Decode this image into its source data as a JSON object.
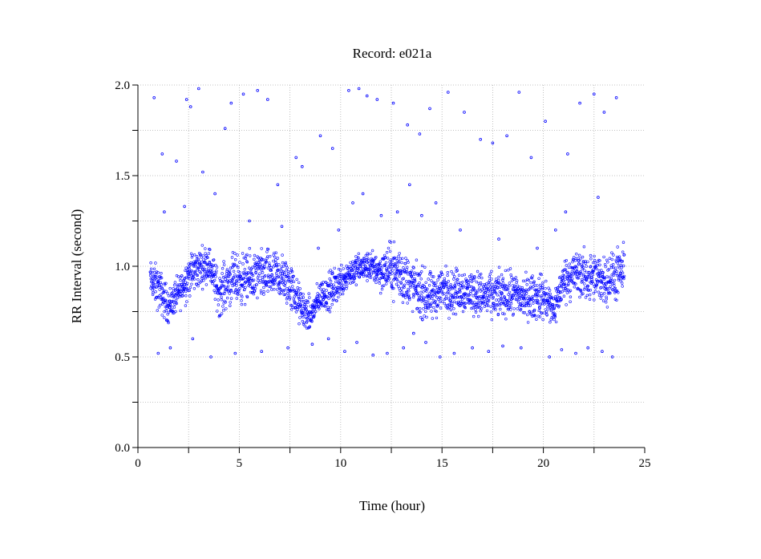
{
  "chart_data": {
    "type": "scatter",
    "title": "Record:  e021a",
    "xlabel": "Time (hour)",
    "ylabel": "RR Interval (second)",
    "xlim": [
      0,
      25
    ],
    "ylim": [
      0,
      2
    ],
    "xticks": [
      0,
      5,
      10,
      15,
      20,
      25
    ],
    "xtick_labels": [
      "0",
      "5",
      "10",
      "15",
      "20",
      "25"
    ],
    "yticks": [
      0,
      0.5,
      1,
      1.5,
      2
    ],
    "ytick_labels": [
      "0.0",
      "0.5",
      "1.0",
      "1.5",
      "2.0"
    ],
    "grid": true,
    "marker_color": "#0000ff",
    "series": [
      {
        "trend": {
          "x": [
            0.6,
            1.0,
            1.5,
            2.0,
            2.5,
            3.0,
            3.5,
            4.0,
            4.5,
            5.0,
            5.5,
            6.0,
            6.5,
            7.0,
            7.5,
            8.0,
            8.5,
            9.0,
            9.5,
            10.0,
            10.5,
            11.0,
            11.5,
            12.0,
            12.5,
            13.0,
            13.5,
            14.0,
            14.5,
            15.0,
            15.5,
            16.0,
            16.5,
            17.0,
            17.5,
            18.0,
            18.5,
            19.0,
            19.5,
            20.0,
            20.5,
            21.0,
            21.5,
            22.0,
            22.5,
            23.0,
            23.5,
            24.0
          ],
          "y": [
            0.93,
            0.88,
            0.78,
            0.85,
            0.95,
            0.99,
            1.02,
            0.85,
            0.92,
            0.93,
            0.93,
            0.95,
            0.95,
            0.94,
            0.9,
            0.78,
            0.72,
            0.84,
            0.86,
            0.92,
            0.97,
            0.99,
            1.0,
            0.97,
            0.99,
            0.95,
            0.9,
            0.85,
            0.82,
            0.88,
            0.86,
            0.87,
            0.86,
            0.84,
            0.83,
            0.85,
            0.84,
            0.83,
            0.83,
            0.83,
            0.76,
            0.92,
            0.96,
            0.95,
            0.93,
            0.93,
            0.94,
            0.97
          ],
          "spread": [
            0.07,
            0.09,
            0.07,
            0.07,
            0.09,
            0.08,
            0.07,
            0.09,
            0.1,
            0.1,
            0.1,
            0.1,
            0.1,
            0.1,
            0.1,
            0.08,
            0.07,
            0.06,
            0.08,
            0.07,
            0.06,
            0.06,
            0.06,
            0.08,
            0.1,
            0.12,
            0.1,
            0.1,
            0.1,
            0.09,
            0.09,
            0.09,
            0.09,
            0.09,
            0.09,
            0.09,
            0.09,
            0.09,
            0.09,
            0.09,
            0.08,
            0.08,
            0.1,
            0.1,
            0.1,
            0.1,
            0.1,
            0.1
          ]
        },
        "outliers": {
          "x": [
            0.8,
            1.2,
            1.9,
            2.4,
            2.6,
            3.0,
            3.2,
            4.3,
            4.6,
            5.2,
            5.9,
            6.4,
            6.9,
            7.8,
            8.1,
            9.0,
            9.6,
            10.4,
            10.9,
            11.3,
            11.8,
            12.6,
            13.3,
            13.9,
            14.4,
            15.3,
            16.1,
            16.9,
            17.5,
            18.2,
            18.8,
            19.4,
            20.1,
            21.2,
            21.8,
            22.5,
            23.0,
            23.6,
            1.0,
            1.6,
            2.7,
            3.6,
            4.8,
            6.1,
            7.4,
            8.6,
            9.4,
            10.2,
            10.8,
            11.6,
            12.3,
            13.1,
            13.6,
            14.2,
            14.9,
            15.6,
            16.5,
            17.3,
            18.0,
            18.9,
            20.3,
            20.9,
            21.6,
            22.2,
            22.9,
            23.4,
            1.3,
            2.3,
            3.8,
            5.5,
            7.1,
            8.9,
            9.9,
            10.6,
            11.1,
            12.0,
            12.8,
            13.4,
            14.0,
            14.7,
            15.9,
            17.8,
            19.7,
            20.6,
            21.1,
            22.7
          ],
          "y": [
            1.93,
            1.62,
            1.58,
            1.92,
            1.88,
            1.98,
            1.52,
            1.76,
            1.9,
            1.95,
            1.97,
            1.92,
            1.45,
            1.6,
            1.55,
            1.72,
            1.65,
            1.97,
            1.98,
            1.94,
            1.92,
            1.9,
            1.78,
            1.73,
            1.87,
            1.96,
            1.85,
            1.7,
            1.68,
            1.72,
            1.96,
            1.6,
            1.8,
            1.62,
            1.9,
            1.95,
            1.85,
            1.93,
            0.52,
            0.55,
            0.6,
            0.5,
            0.52,
            0.53,
            0.55,
            0.57,
            0.6,
            0.53,
            0.58,
            0.51,
            0.52,
            0.55,
            0.63,
            0.58,
            0.5,
            0.52,
            0.55,
            0.53,
            0.56,
            0.55,
            0.5,
            0.54,
            0.52,
            0.55,
            0.53,
            0.5,
            1.3,
            1.33,
            1.4,
            1.25,
            1.22,
            1.1,
            1.2,
            1.35,
            1.4,
            1.28,
            1.3,
            1.45,
            1.28,
            1.35,
            1.2,
            1.15,
            1.1,
            1.2,
            1.3,
            1.38
          ]
        }
      }
    ]
  }
}
